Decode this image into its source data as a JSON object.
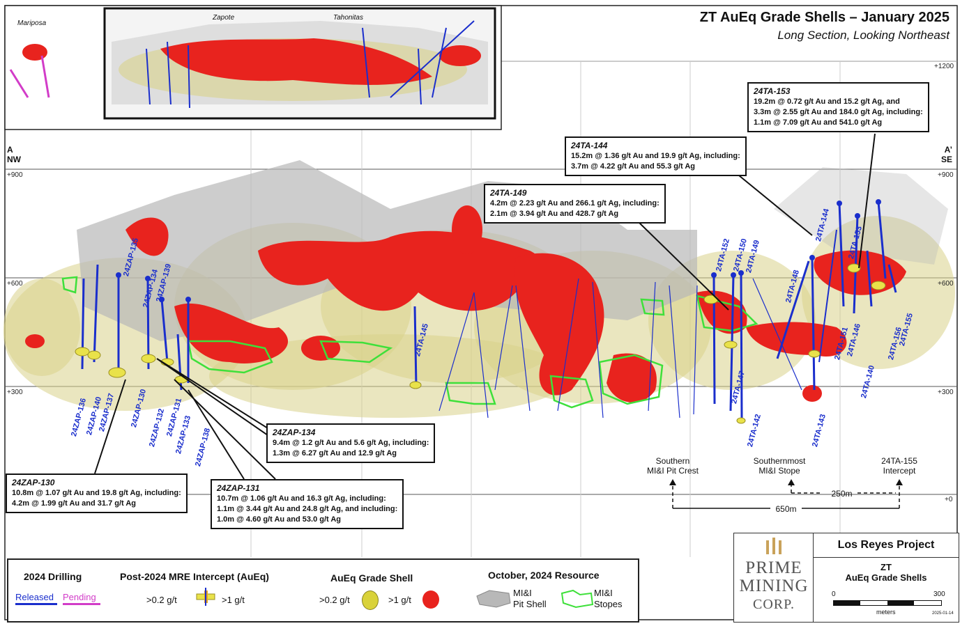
{
  "title": {
    "main": "ZT AuEq Grade Shells – January 2025",
    "sub": "Long Section, Looking Northeast"
  },
  "section_ends": {
    "left_letter": "A",
    "left_dir": "NW",
    "right_letter": "A’",
    "right_dir": "SE"
  },
  "inset": {
    "mariposa": "Mariposa",
    "zapote": "Zapote",
    "tahonitas": "Tahonitas"
  },
  "elevations": {
    "e1200": "+1200",
    "e900": "+900",
    "e600": "+600",
    "e300": "+300",
    "e0": "+0"
  },
  "holes": [
    "24ZAP-135",
    "24ZAP-134",
    "24ZAP-139",
    "24ZAP-136",
    "24ZAP-140",
    "24ZAP-137",
    "24ZAP-130",
    "24ZAP-132",
    "24ZAP-131",
    "24ZAP-133",
    "24ZAP-138",
    "24TA-145",
    "24TA-152",
    "24TA-150",
    "24TA-149",
    "24TA-147",
    "24TA-142",
    "24TA-148",
    "24TA-143",
    "24TA-144",
    "24TA-153",
    "24TA-151",
    "24TA-146",
    "24TA-140",
    "24TA-156",
    "24TA-155"
  ],
  "callouts": {
    "c153": {
      "id": "24TA-153",
      "l1": "19.2m @ 0.72 g/t Au and 15.2 g/t Ag, and",
      "l2": "3.3m @ 2.55 g/t Au and 184.0 g/t Ag, including:",
      "l3": "1.1m @ 7.09 g/t Au and 541.0 g/t Ag"
    },
    "c144": {
      "id": "24TA-144",
      "l1": "15.2m @ 1.36 g/t Au and 19.9 g/t Ag, including:",
      "l2": "3.7m @ 4.22 g/t Au and 55.3 g/t Ag"
    },
    "c149": {
      "id": "24TA-149",
      "l1": "4.2m @ 2.23 g/t Au and 266.1 g/t Ag, including:",
      "l2": "2.1m @ 3.94 g/t Au and 428.7 g/t Ag"
    },
    "c134": {
      "id": "24ZAP-134",
      "l1": "9.4m @ 1.2 g/t Au and 5.6 g/t Ag, including:",
      "l2": "1.3m @ 6.27 g/t Au and 12.9 g/t Ag"
    },
    "c130": {
      "id": "24ZAP-130",
      "l1": "10.8m @ 1.07 g/t Au and 19.8 g/t Ag, including:",
      "l2": "4.2m @ 1.99 g/t Au and 31.7 g/t Ag"
    },
    "c131": {
      "id": "24ZAP-131",
      "l1": "10.7m @ 1.06 g/t Au and 16.3 g/t Ag, including:",
      "l2": "1.1m @ 3.44 g/t Au and 24.8 g/t Ag, and including:",
      "l3": "1.0m @ 4.60 g/t Au and 53.0 g/t Ag"
    }
  },
  "markers": {
    "pit_crest": {
      "l1": "Southern",
      "l2": "MI&I Pit Crest"
    },
    "stope": {
      "l1": "Southernmost",
      "l2": "MI&I Stope"
    },
    "intercept": {
      "l1": "24TA-155",
      "l2": "Intercept"
    },
    "dist_250": "250m",
    "dist_650": "650m"
  },
  "legend": {
    "drilling_title": "2024 Drilling",
    "released": "Released",
    "pending": "Pending",
    "mre_title": "Post-2024 MRE Intercept (AuEq)",
    "mre_low": ">0.2 g/t",
    "mre_high": ">1 g/t",
    "shell_title": "AuEq Grade Shell",
    "shell_low": ">0.2 g/t",
    "shell_high": ">1 g/t",
    "resource_title": "October, 2024 Resource",
    "pit_shell_l1": "MI&I",
    "pit_shell_l2": "Pit Shell",
    "stopes_l1": "MI&I",
    "stopes_l2": "Stopes"
  },
  "logo": {
    "w1": "PRIME",
    "w2": "MINING",
    "w3": "CORP."
  },
  "project": {
    "name": "Los Reyes Project",
    "l1": "ZT",
    "l2": "AuEq Grade Shells",
    "scale_min": "0",
    "scale_max": "300",
    "scale_unit": "meters",
    "date": "2025-01-14"
  },
  "colors": {
    "released": "#1a2ecc",
    "pending": "#d23cc8",
    "high_grade": "#e8231e",
    "low_grade": "#d9d28a",
    "stope": "#3ee03a",
    "pit": "#b8b8b8"
  }
}
